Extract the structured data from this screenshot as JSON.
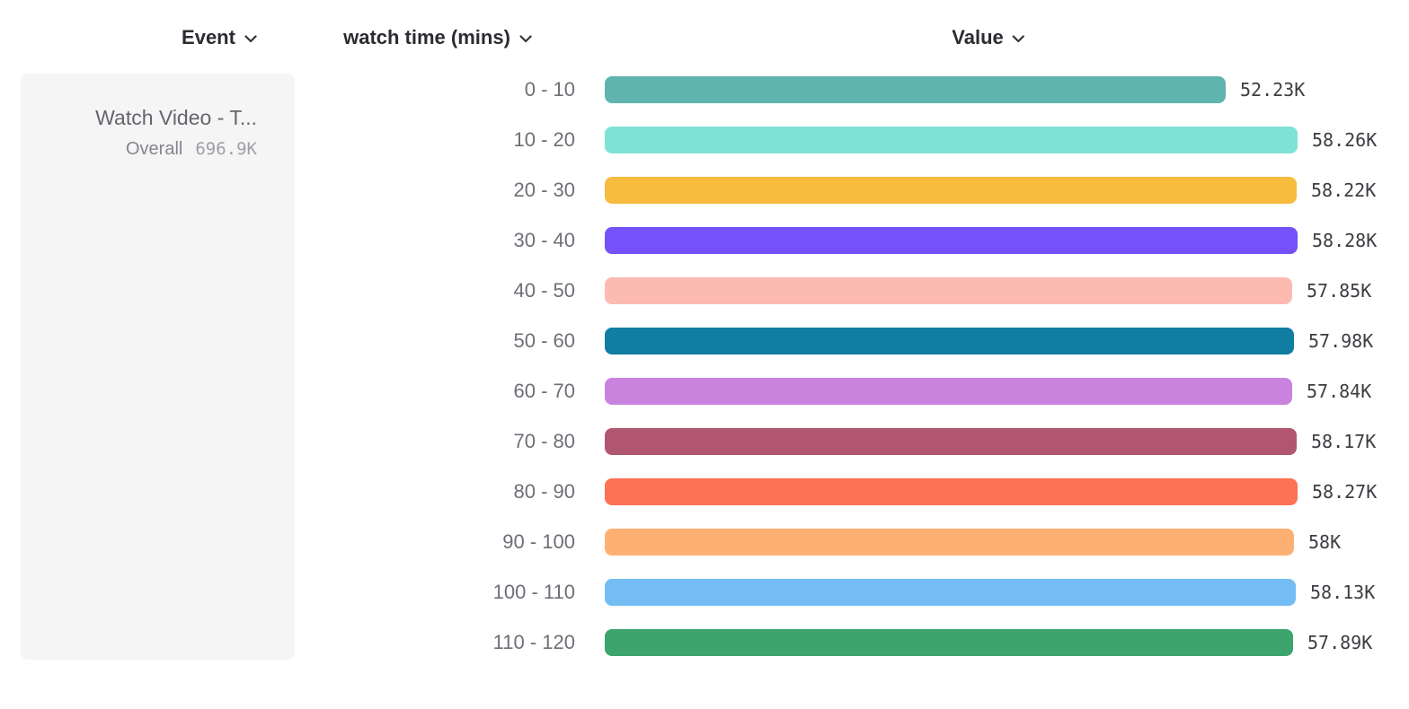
{
  "header": {
    "event_label": "Event",
    "breakdown_label": "watch time (mins)",
    "value_label": "Value"
  },
  "event_panel": {
    "event_name": "Watch Video - T...",
    "overall_label": "Overall",
    "overall_value": "696.9K"
  },
  "chart_data": {
    "type": "bar",
    "orientation": "horizontal",
    "title": "",
    "xlabel": "Value",
    "ylabel": "watch time (mins)",
    "xlim": [
      0,
      58280
    ],
    "grid": false,
    "legend_position": "none",
    "categories": [
      "0 - 10",
      "10 - 20",
      "20 - 30",
      "30 - 40",
      "40 - 50",
      "50 - 60",
      "60 - 70",
      "70 - 80",
      "80 - 90",
      "90 - 100",
      "100 - 110",
      "110 - 120"
    ],
    "values": [
      52230,
      58260,
      58220,
      58280,
      57850,
      57980,
      57840,
      58170,
      58270,
      58000,
      58130,
      57890
    ],
    "value_labels": [
      "52.23K",
      "58.26K",
      "58.22K",
      "58.28K",
      "57.85K",
      "57.98K",
      "57.84K",
      "58.17K",
      "58.27K",
      "58K",
      "58.13K",
      "57.89K"
    ],
    "colors": [
      "#5fb5ae",
      "#7fe2d6",
      "#f7bc3e",
      "#7451f8",
      "#fcbab1",
      "#117da0",
      "#c983de",
      "#b15670",
      "#fd7154",
      "#fdb074",
      "#74bdf4",
      "#3ca46c"
    ]
  }
}
